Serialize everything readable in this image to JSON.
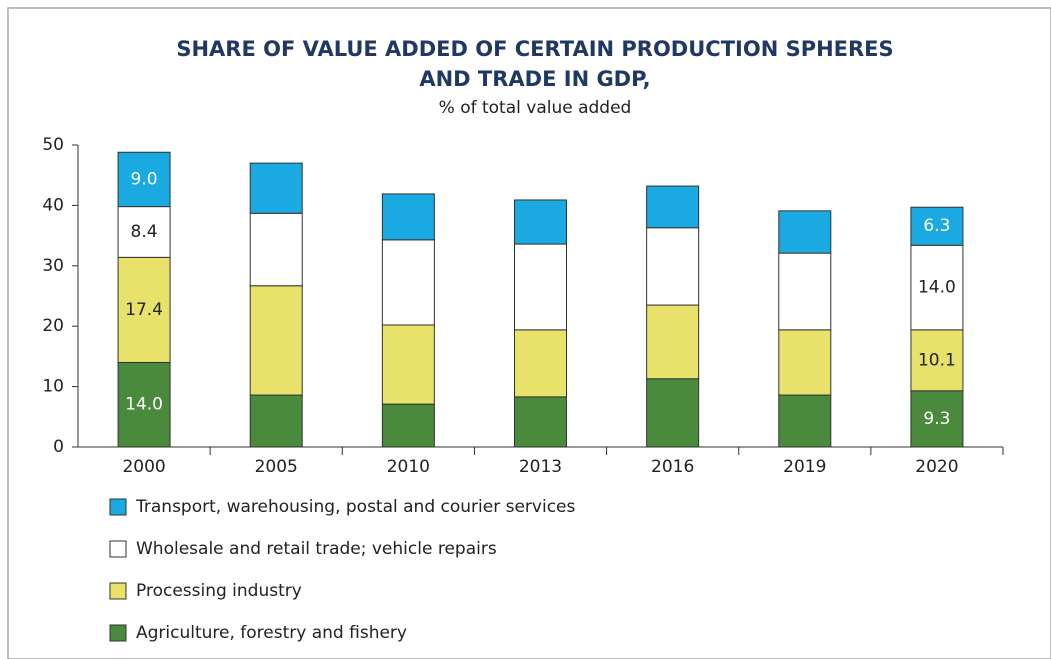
{
  "chart_data": {
    "type": "stacked_bar",
    "title": [
      "SHARE OF VALUE ADDED OF CERTAIN PRODUCTION SPHERES",
      "AND TRADE IN GDP,"
    ],
    "subtitle": "% of total value added",
    "categories": [
      "2000",
      "2005",
      "2010",
      "2013",
      "2016",
      "2019",
      "2020"
    ],
    "series": [
      {
        "name": "Agriculture, forestry and fishery",
        "color": "#4a8a3c",
        "label_color": "#ffffff",
        "values": [
          14.0,
          8.6,
          7.1,
          8.3,
          11.3,
          8.6,
          9.3
        ],
        "value_labels": [
          "14.0",
          null,
          null,
          null,
          null,
          null,
          "9.3"
        ]
      },
      {
        "name": "Processing industry",
        "color": "#e8e26a",
        "label_color": "#222222",
        "values": [
          17.4,
          18.1,
          13.1,
          11.1,
          12.2,
          10.8,
          10.1
        ],
        "value_labels": [
          "17.4",
          null,
          null,
          null,
          null,
          null,
          "10.1"
        ]
      },
      {
        "name": "Wholesale and retail trade; vehicle repairs",
        "color": "#ffffff",
        "label_color": "#222222",
        "values": [
          8.4,
          12.0,
          14.1,
          14.2,
          12.8,
          12.7,
          14.0
        ],
        "value_labels": [
          "8.4",
          null,
          null,
          null,
          null,
          null,
          "14.0"
        ]
      },
      {
        "name": "Transport, warehousing, postal and courier services",
        "color": "#1ba9e1",
        "label_color": "#ffffff",
        "values": [
          9.0,
          8.3,
          7.6,
          7.3,
          6.9,
          7.0,
          6.3
        ],
        "value_labels": [
          "9.0",
          null,
          null,
          null,
          null,
          null,
          "6.3"
        ]
      }
    ],
    "ylim": [
      0,
      50
    ],
    "yticks": [
      0,
      10,
      20,
      30,
      40,
      50
    ],
    "grid": false,
    "legend": "bottom-left"
  }
}
